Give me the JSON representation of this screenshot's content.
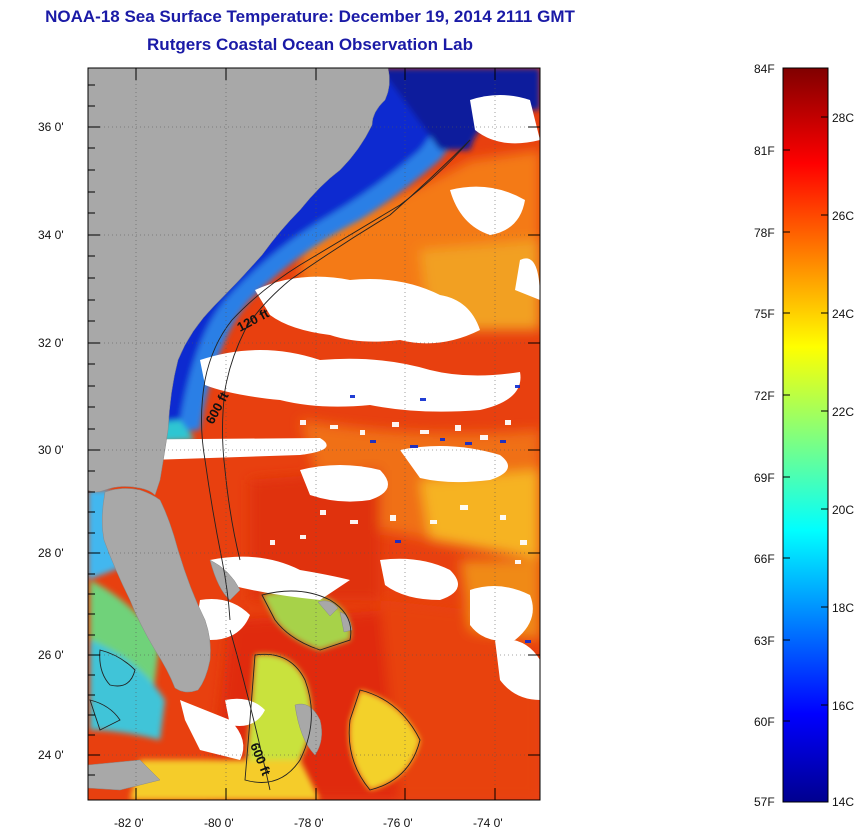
{
  "title": {
    "line1": "NOAA-18 Sea Surface Temperature:  December 19, 2014 2111 GMT",
    "line2": "Rutgers Coastal Ocean Observation Lab"
  },
  "map": {
    "lat_ticks": [
      "36 0'",
      "34 0'",
      "32 0'",
      "30 0'",
      "28 0'",
      "26 0'",
      "24 0'"
    ],
    "lon_ticks": [
      "-82 0'",
      "-80 0'",
      "-78 0'",
      "-76 0'",
      "-74 0'"
    ],
    "contour_labels": [
      "120 ft",
      "600 ft",
      "600 ft"
    ],
    "colors": {
      "land": "#a8a8a8",
      "cloud": "#ffffff",
      "cold_shelf": "#0a1aa8",
      "warm_gulfstream": "#e23a12"
    }
  },
  "colorbar": {
    "fahrenheit_labels": [
      "84F",
      "81F",
      "78F",
      "75F",
      "72F",
      "69F",
      "66F",
      "63F",
      "60F",
      "57F"
    ],
    "celsius_labels": [
      "28C",
      "26C",
      "24C",
      "22C",
      "20C",
      "18C",
      "16C",
      "14C"
    ]
  }
}
